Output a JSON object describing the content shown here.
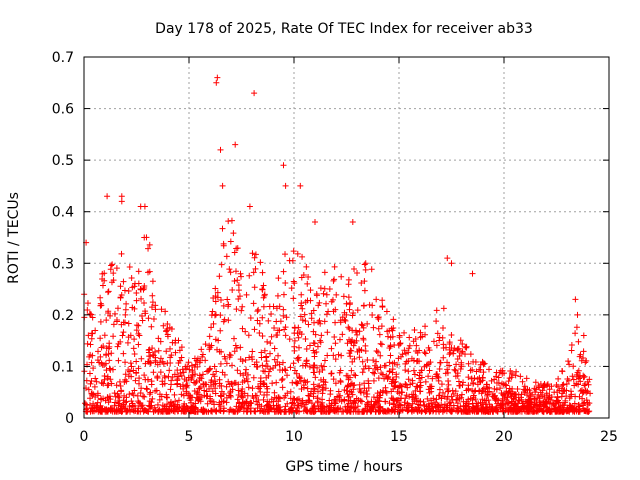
{
  "chart_data": {
    "type": "scatter",
    "title": "Day 178 of 2025, Rate Of TEC Index for receiver ab33",
    "xlabel": "GPS time / hours",
    "ylabel": "ROTI / TECUs",
    "xlim": [
      0,
      25
    ],
    "ylim": [
      0,
      0.7
    ],
    "x_ticks": [
      0,
      5,
      10,
      15,
      20,
      25
    ],
    "x_tick_labels": [
      "0",
      "5",
      "10",
      "15",
      "20",
      "25"
    ],
    "y_ticks": [
      0,
      0.1,
      0.2,
      0.3,
      0.4,
      0.5,
      0.6,
      0.7
    ],
    "y_tick_labels": [
      "0",
      "0.1",
      "0.2",
      "0.3",
      "0.4",
      "0.5",
      "0.6",
      "0.7"
    ],
    "grid": true,
    "marker": "+",
    "marker_color": "#ff0000",
    "envelope_hours": [
      0,
      0.5,
      1,
      1.5,
      2,
      2.5,
      3,
      3.5,
      4,
      4.5,
      5,
      5.5,
      6,
      6.5,
      7,
      7.5,
      8,
      8.5,
      9,
      9.5,
      10,
      10.5,
      11,
      11.5,
      12,
      12.5,
      13,
      13.5,
      14,
      14.5,
      15,
      15.5,
      16,
      16.5,
      17,
      17.5,
      18,
      18.5,
      19,
      19.5,
      20,
      20.5,
      21,
      21.5,
      22,
      22.5,
      23,
      23.5,
      24
    ],
    "envelope_roti": [
      0.25,
      0.2,
      0.3,
      0.28,
      0.33,
      0.28,
      0.38,
      0.25,
      0.18,
      0.14,
      0.1,
      0.12,
      0.18,
      0.35,
      0.38,
      0.3,
      0.33,
      0.28,
      0.2,
      0.32,
      0.35,
      0.3,
      0.22,
      0.3,
      0.28,
      0.25,
      0.3,
      0.3,
      0.25,
      0.2,
      0.17,
      0.16,
      0.16,
      0.18,
      0.22,
      0.15,
      0.14,
      0.12,
      0.1,
      0.09,
      0.08,
      0.08,
      0.07,
      0.06,
      0.06,
      0.06,
      0.1,
      0.17,
      0.1
    ],
    "outliers": [
      {
        "x": 0.1,
        "y": 0.34
      },
      {
        "x": 1.1,
        "y": 0.43
      },
      {
        "x": 1.8,
        "y": 0.43
      },
      {
        "x": 1.8,
        "y": 0.42
      },
      {
        "x": 2.7,
        "y": 0.41
      },
      {
        "x": 2.9,
        "y": 0.41
      },
      {
        "x": 6.3,
        "y": 0.65
      },
      {
        "x": 6.35,
        "y": 0.66
      },
      {
        "x": 6.5,
        "y": 0.52
      },
      {
        "x": 7.2,
        "y": 0.53
      },
      {
        "x": 8.1,
        "y": 0.63
      },
      {
        "x": 6.6,
        "y": 0.45
      },
      {
        "x": 7.9,
        "y": 0.41
      },
      {
        "x": 9.5,
        "y": 0.49
      },
      {
        "x": 9.6,
        "y": 0.45
      },
      {
        "x": 10.3,
        "y": 0.45
      },
      {
        "x": 11.0,
        "y": 0.38
      },
      {
        "x": 12.8,
        "y": 0.38
      },
      {
        "x": 17.3,
        "y": 0.31
      },
      {
        "x": 17.5,
        "y": 0.3
      },
      {
        "x": 18.5,
        "y": 0.28
      },
      {
        "x": 23.4,
        "y": 0.23
      },
      {
        "x": 23.5,
        "y": 0.2
      },
      {
        "x": 23.8,
        "y": 0.16
      }
    ]
  }
}
